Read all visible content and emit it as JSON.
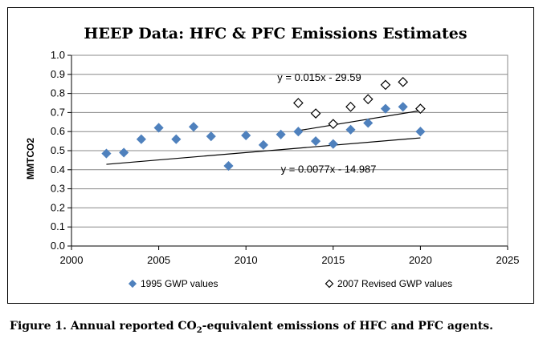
{
  "chart_data": {
    "type": "scatter",
    "title": "HEEP Data: HFC & PFC Emissions Estimates",
    "xlabel": "",
    "ylabel": "MMTCO2",
    "xlim": [
      2000,
      2025
    ],
    "ylim": [
      0.0,
      1.0
    ],
    "x_ticks": [
      2000,
      2005,
      2010,
      2015,
      2020,
      2025
    ],
    "y_ticks": [
      0.0,
      0.1,
      0.2,
      0.3,
      0.4,
      0.5,
      0.6,
      0.7,
      0.8,
      0.9,
      1.0
    ],
    "x_tick_labels": [
      "2000",
      "2005",
      "2010",
      "2015",
      "2020",
      "2025"
    ],
    "y_tick_labels": [
      "0.0",
      "0.1",
      "0.2",
      "0.3",
      "0.4",
      "0.5",
      "0.6",
      "0.7",
      "0.8",
      "0.9",
      "1.0"
    ],
    "grid": "horizontal major gridlines",
    "legend_position": "bottom",
    "series": [
      {
        "name": "1995 GWP values",
        "marker": "filled-diamond",
        "color": "#4F81BD",
        "x": [
          2002,
          2003,
          2004,
          2005,
          2006,
          2007,
          2008,
          2009,
          2010,
          2011,
          2012,
          2013,
          2014,
          2015,
          2016,
          2017,
          2018,
          2019,
          2020
        ],
        "y": [
          0.485,
          0.49,
          0.56,
          0.62,
          0.56,
          0.625,
          0.575,
          0.42,
          0.58,
          0.53,
          0.585,
          0.6,
          0.55,
          0.535,
          0.61,
          0.645,
          0.72,
          0.73,
          0.6
        ]
      },
      {
        "name": "2007 Revised GWP values",
        "marker": "open-diamond",
        "color": "#000000",
        "x": [
          2013,
          2014,
          2015,
          2016,
          2017,
          2018,
          2019,
          2020
        ],
        "y": [
          0.75,
          0.695,
          0.64,
          0.73,
          0.77,
          0.845,
          0.86,
          0.72
        ]
      }
    ],
    "trendlines": [
      {
        "series": "1995 GWP values",
        "equation": "y = 0.0077x - 14.987",
        "slope": 0.0077,
        "intercept": -14.987,
        "x_range": [
          2002,
          2020
        ]
      },
      {
        "series": "2007 Revised GWP values",
        "equation": "y = 0.015x - 29.59",
        "slope": 0.015,
        "intercept": -29.59,
        "x_range": [
          2013,
          2020
        ]
      }
    ]
  },
  "caption": {
    "prefix": "Figure 1. Annual reported CO",
    "subscript": "2",
    "suffix": "-equivalent emissions of HFC and PFC agents."
  },
  "colors": {
    "series_1995": "#4F81BD",
    "series_2007": "#000000",
    "gridline": "#888888",
    "trendline": "#000000"
  }
}
